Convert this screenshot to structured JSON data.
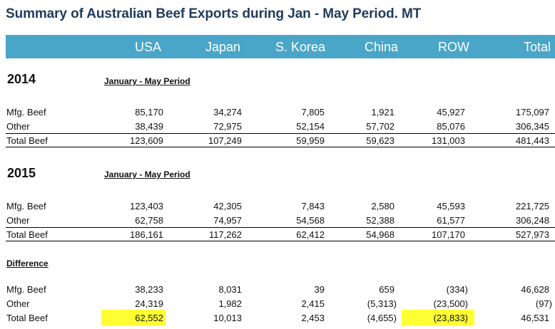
{
  "title": "Summary of Australian Beef Exports during Jan - May Period. MT",
  "columns": [
    "USA",
    "Japan",
    "S. Korea",
    "China",
    "ROW",
    "Total"
  ],
  "sections": [
    {
      "heading": "2014",
      "period": "January - May Period",
      "rows": [
        {
          "label": "Mfg. Beef",
          "values": [
            "85,170",
            "34,274",
            "7,805",
            "1,921",
            "45,927",
            "175,097"
          ]
        },
        {
          "label": "Other",
          "values": [
            "38,439",
            "72,975",
            "52,154",
            "57,702",
            "85,076",
            "306,345"
          ]
        },
        {
          "label": "Total Beef",
          "values": [
            "123,609",
            "107,249",
            "59,959",
            "59,623",
            "131,003",
            "481,443"
          ]
        }
      ]
    },
    {
      "heading": "2015",
      "period": "January - May Period",
      "rows": [
        {
          "label": "Mfg. Beef",
          "values": [
            "123,403",
            "42,305",
            "7,843",
            "2,580",
            "45,593",
            "221,725"
          ]
        },
        {
          "label": "Other",
          "values": [
            "62,758",
            "74,957",
            "54,568",
            "52,388",
            "61,577",
            "306,248"
          ]
        },
        {
          "label": "Total Beef",
          "values": [
            "186,161",
            "117,262",
            "62,412",
            "54,968",
            "107,170",
            "527,973"
          ]
        }
      ]
    },
    {
      "heading": "Difference",
      "rows": [
        {
          "label": "Mfg. Beef",
          "values": [
            "38,233",
            "8,031",
            "39",
            "659",
            "(334)",
            "46,628"
          ]
        },
        {
          "label": "Other",
          "values": [
            "24,319",
            "1,982",
            "2,415",
            "(5,313)",
            "(23,500)",
            "(97)"
          ]
        },
        {
          "label": "Total Beef",
          "values": [
            "62,552",
            "10,013",
            "2,453",
            "(4,655)",
            "(23,833)",
            "46,531"
          ]
        }
      ]
    }
  ],
  "highlight_color": "#ffff33",
  "header_color": "#4aa6c8"
}
